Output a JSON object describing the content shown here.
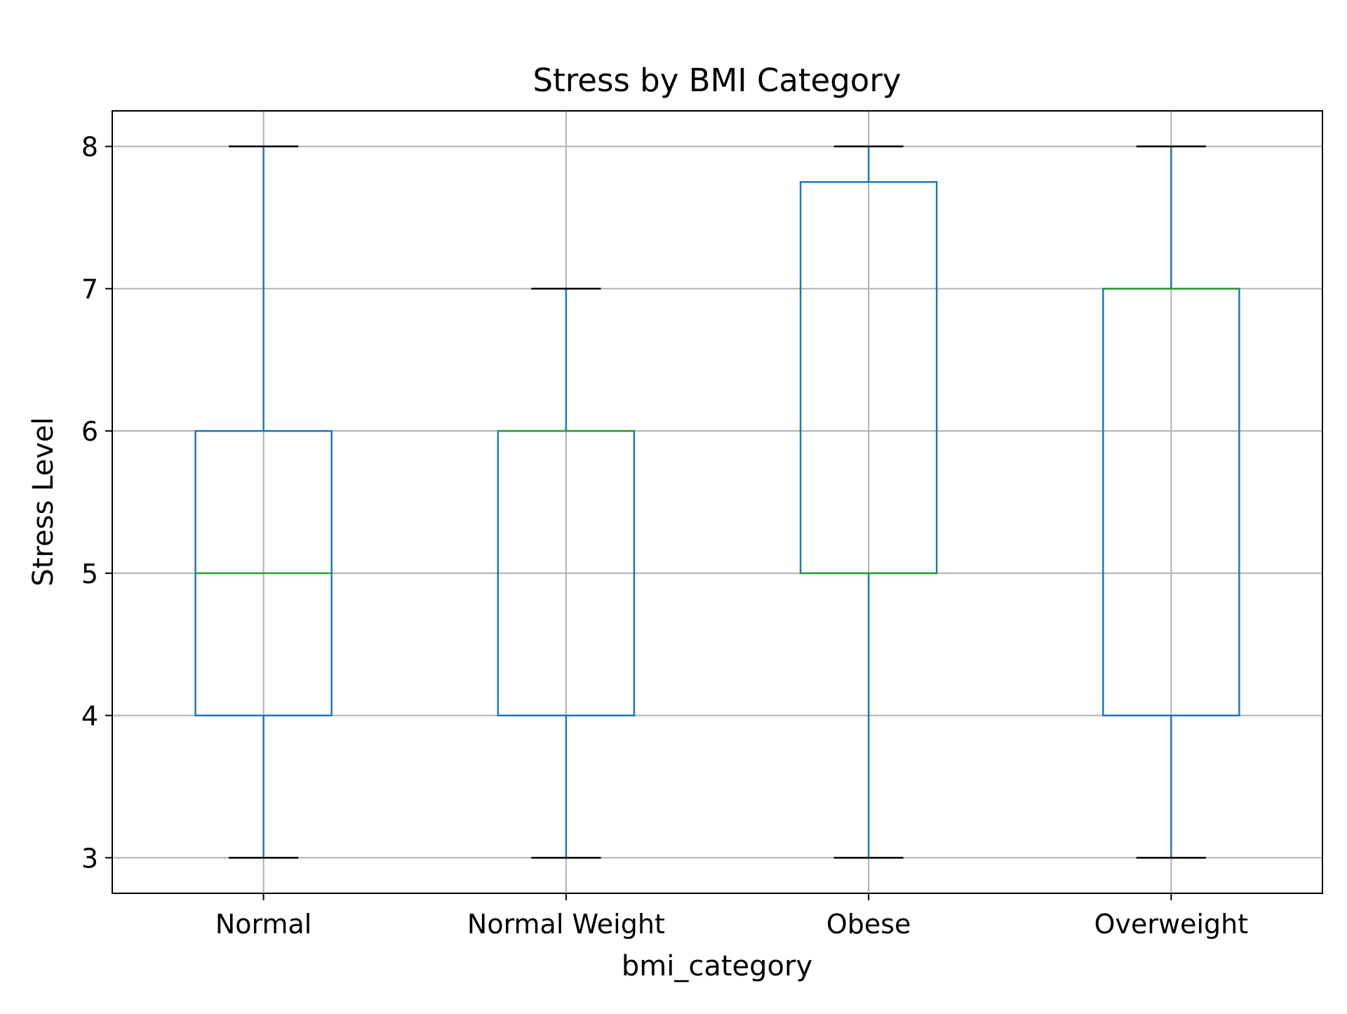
{
  "chart_data": {
    "type": "box",
    "title": "Stress by BMI Category",
    "xlabel": "bmi_category",
    "ylabel": "Stress Level",
    "ylim": [
      2.75,
      8.25
    ],
    "yticks": [
      3,
      4,
      5,
      6,
      7,
      8
    ],
    "grid": true,
    "categories": [
      "Normal",
      "Normal Weight",
      "Obese",
      "Overweight"
    ],
    "boxes": [
      {
        "category": "Normal",
        "whisker_low": 3,
        "q1": 4,
        "median": 5,
        "q3": 6,
        "whisker_high": 8
      },
      {
        "category": "Normal Weight",
        "whisker_low": 3,
        "q1": 4,
        "median": 6,
        "q3": 6,
        "whisker_high": 7
      },
      {
        "category": "Obese",
        "whisker_low": 3,
        "q1": 5,
        "median": 5,
        "q3": 7.75,
        "whisker_high": 8
      },
      {
        "category": "Overweight",
        "whisker_low": 3,
        "q1": 4,
        "median": 7,
        "q3": 7,
        "whisker_high": 8
      }
    ],
    "colors": {
      "box": "#1f77b4",
      "median": "#2ca02c",
      "cap": "#000000",
      "grid": "#b0b0b0",
      "axes": "#000000"
    }
  }
}
